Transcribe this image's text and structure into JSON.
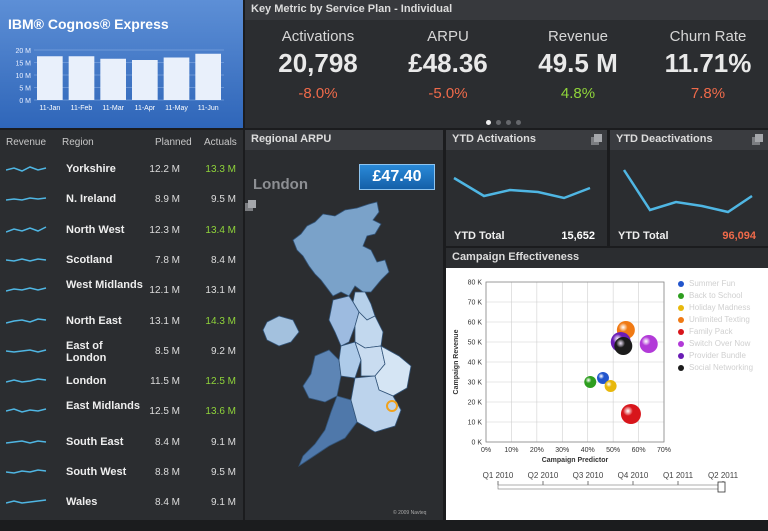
{
  "brand": {
    "logo": "IBM® Cognos® Express",
    "mini_chart": {
      "y_ticks": [
        "20 M",
        "15 M",
        "10 M",
        "5 M",
        "0 M"
      ],
      "categories": [
        "11-Jan",
        "11-Feb",
        "11-Mar",
        "11-Apr",
        "11-May",
        "11-Jun"
      ],
      "values": [
        17.5,
        17.5,
        16.5,
        16,
        17,
        18.5
      ]
    }
  },
  "kpi": {
    "title": "Key Metric by Service Plan - Individual",
    "items": [
      {
        "label": "Activations",
        "value": "20,798",
        "delta": "-8.0%",
        "color": "#ef6a4a"
      },
      {
        "label": "ARPU",
        "value": "£48.36",
        "delta": "-5.0%",
        "color": "#ef6a4a"
      },
      {
        "label": "Revenue",
        "value": "49.5 M",
        "delta": "4.8%",
        "color": "#8fd43a"
      },
      {
        "label": "Churn Rate",
        "value": "11.71%",
        "delta": "7.8%",
        "color": "#ef6a4a"
      }
    ]
  },
  "regions": {
    "headers": {
      "revenue": "Revenue",
      "region": "Region",
      "planned": "Planned",
      "actuals": "Actuals"
    },
    "rows": [
      {
        "name": "Yorkshire",
        "planned": "12.2 M",
        "actual": "13.3 M",
        "up": true
      },
      {
        "name": "N. Ireland",
        "planned": "8.9 M",
        "actual": "9.5 M",
        "up": false
      },
      {
        "name": "North West",
        "planned": "12.3 M",
        "actual": "13.4 M",
        "up": true
      },
      {
        "name": "Scotland",
        "planned": "7.8 M",
        "actual": "8.4 M",
        "up": false
      },
      {
        "name": "West Midlands",
        "planned": "12.1 M",
        "actual": "13.1 M",
        "up": false
      },
      {
        "name": "North East",
        "planned": "13.1 M",
        "actual": "14.3 M",
        "up": true
      },
      {
        "name": "East of London",
        "planned": "8.5 M",
        "actual": "9.2 M",
        "up": false
      },
      {
        "name": "London",
        "planned": "11.5 M",
        "actual": "12.5 M",
        "up": true
      },
      {
        "name": "East Midlands",
        "planned": "12.5 M",
        "actual": "13.6 M",
        "up": true
      },
      {
        "name": "South East",
        "planned": "8.4 M",
        "actual": "9.1 M",
        "up": false
      },
      {
        "name": "South West",
        "planned": "8.8 M",
        "actual": "9.5 M",
        "up": false
      },
      {
        "name": "Wales",
        "planned": "8.4 M",
        "actual": "9.1 M",
        "up": false
      }
    ]
  },
  "arpu": {
    "title": "Regional ARPU",
    "region": "London",
    "value": "£47.40",
    "copyright": "© 2009 Navteq"
  },
  "ytd_activations": {
    "title": "YTD Activations",
    "total_label": "YTD Total",
    "total": "15,652",
    "total_color": "#ffffff"
  },
  "ytd_deactivations": {
    "title": "YTD Deactivations",
    "total_label": "YTD Total",
    "total": "96,094",
    "total_color": "#ef6a4a"
  },
  "campaign": {
    "title": "Campaign Effectiveness",
    "timeline": [
      "Q1 2010",
      "Q2 2010",
      "Q3 2010",
      "Q4 2010",
      "Q1 2011",
      "Q2 2011"
    ]
  },
  "chart_data": {
    "type": "scatter",
    "xlabel": "Campaign Predictor",
    "ylabel": "Campaign Revenue",
    "xlim": [
      0,
      70
    ],
    "ylim": [
      0,
      80
    ],
    "x_ticks": [
      "0%",
      "10%",
      "20%",
      "30%",
      "40%",
      "50%",
      "60%",
      "70%"
    ],
    "y_ticks": [
      "0 K",
      "10 K",
      "20 K",
      "30 K",
      "40 K",
      "50 K",
      "60 K",
      "70 K",
      "80 K"
    ],
    "series": [
      {
        "name": "Summer Fun",
        "color": "#2255cc",
        "x": 46,
        "y": 32
      },
      {
        "name": "Back to School",
        "color": "#2e9e1f",
        "x": 41,
        "y": 30
      },
      {
        "name": "Holiday Madness",
        "color": "#e8b80c",
        "x": 49,
        "y": 28
      },
      {
        "name": "Unlimited Texting",
        "color": "#f07a14",
        "x": 55,
        "y": 56
      },
      {
        "name": "Family Pack",
        "color": "#d8151b",
        "x": 57,
        "y": 14
      },
      {
        "name": "Switch Over Now",
        "color": "#b23ad8",
        "x": 64,
        "y": 49
      },
      {
        "name": "Provider Bundle",
        "color": "#6a1cb5",
        "x": 53,
        "y": 50
      },
      {
        "name": "Social Networking",
        "color": "#1c1c1c",
        "x": 54,
        "y": 48
      }
    ]
  }
}
